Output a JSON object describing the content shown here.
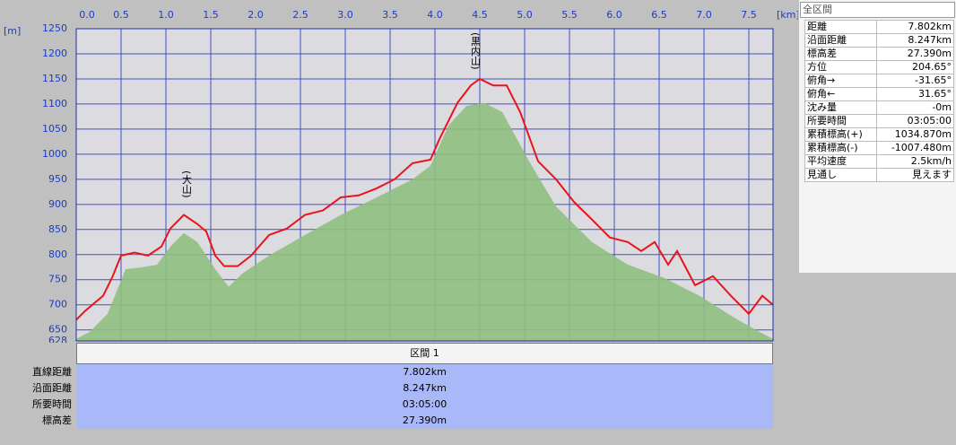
{
  "chart_data": {
    "type": "profile",
    "x_label": "[km]",
    "y_label": "[m]",
    "xlim": [
      0,
      7.77
    ],
    "ylim": [
      628,
      1250
    ],
    "xticks": [
      0.0,
      0.5,
      1.0,
      1.5,
      2.0,
      2.5,
      3.0,
      3.5,
      4.0,
      4.5,
      5.0,
      5.5,
      6.0,
      6.5,
      7.0,
      7.5
    ],
    "xtick_labels": [
      "0.0",
      "0.5",
      "1.0",
      "1.5",
      "2.0",
      "2.5",
      "3.0",
      "3.5",
      "4.0",
      "4.5",
      "5.0",
      "5.5",
      "6.0",
      "6.5",
      "7.0",
      "7.5"
    ],
    "yticks": [
      628,
      650,
      700,
      750,
      800,
      850,
      900,
      950,
      1000,
      1050,
      1100,
      1150,
      1200,
      1250
    ],
    "grid": true,
    "annotations": [
      "(大山)",
      "(黒内山)"
    ],
    "series": [
      {
        "style": "area",
        "color": "#8fbf80",
        "x": [
          0,
          0.15,
          0.35,
          0.55,
          0.75,
          0.9,
          1.05,
          1.2,
          1.35,
          1.55,
          1.7,
          1.85,
          2.15,
          2.55,
          2.95,
          3.35,
          3.75,
          3.95,
          4.15,
          4.35,
          4.55,
          4.75,
          5.05,
          5.35,
          5.75,
          6.15,
          6.55,
          6.95,
          7.35,
          7.65,
          7.77
        ],
        "values": [
          632,
          646,
          682,
          771,
          775,
          780,
          816,
          843,
          825,
          771,
          736,
          762,
          798,
          839,
          879,
          914,
          950,
          977,
          1057,
          1096,
          1102,
          1084,
          986,
          896,
          825,
          780,
          754,
          718,
          673,
          643,
          632
        ]
      },
      {
        "style": "line",
        "color": "#e8141c",
        "x": [
          0,
          0.1,
          0.3,
          0.4,
          0.5,
          0.65,
          0.8,
          0.95,
          1.05,
          1.2,
          1.35,
          1.45,
          1.55,
          1.65,
          1.8,
          1.95,
          2.15,
          2.35,
          2.55,
          2.75,
          2.95,
          3.15,
          3.35,
          3.55,
          3.75,
          3.95,
          4.05,
          4.25,
          4.4,
          4.5,
          4.65,
          4.8,
          4.95,
          5.15,
          5.35,
          5.55,
          5.75,
          5.95,
          6.15,
          6.3,
          6.45,
          6.6,
          6.7,
          6.9,
          7.1,
          7.3,
          7.5,
          7.65,
          7.77
        ],
        "values": [
          670,
          688,
          718,
          754,
          798,
          804,
          798,
          816,
          852,
          879,
          861,
          846,
          798,
          777,
          777,
          798,
          839,
          852,
          879,
          888,
          914,
          918,
          932,
          950,
          982,
          989,
          1030,
          1102,
          1137,
          1150,
          1137,
          1137,
          1084,
          986,
          950,
          905,
          870,
          834,
          825,
          807,
          825,
          780,
          807,
          739,
          757,
          718,
          682,
          718,
          700
        ]
      }
    ]
  },
  "section_table": {
    "header": "区間 1",
    "rows": [
      [
        "直線距離",
        "7.802km"
      ],
      [
        "沿面距離",
        "8.247km"
      ],
      [
        "所要時間",
        "03:05:00"
      ],
      [
        "標高差",
        "27.390m"
      ]
    ]
  },
  "side_panel": {
    "title": "全区間",
    "rows": [
      [
        "距離",
        "7.802km"
      ],
      [
        "沿面距離",
        "8.247km"
      ],
      [
        "標高差",
        "27.390m"
      ],
      [
        "方位",
        "204.65°"
      ],
      [
        "俯角→",
        "-31.65°"
      ],
      [
        "俯角←",
        "31.65°"
      ],
      [
        "沈み量",
        "-0m"
      ],
      [
        "所要時間",
        "03:05:00"
      ],
      [
        "累積標高(+)",
        "1034.870m"
      ],
      [
        "累積標高(-)",
        "-1007.480m"
      ],
      [
        "平均速度",
        "2.5km/h"
      ],
      [
        "見通し",
        "見えます"
      ]
    ]
  }
}
